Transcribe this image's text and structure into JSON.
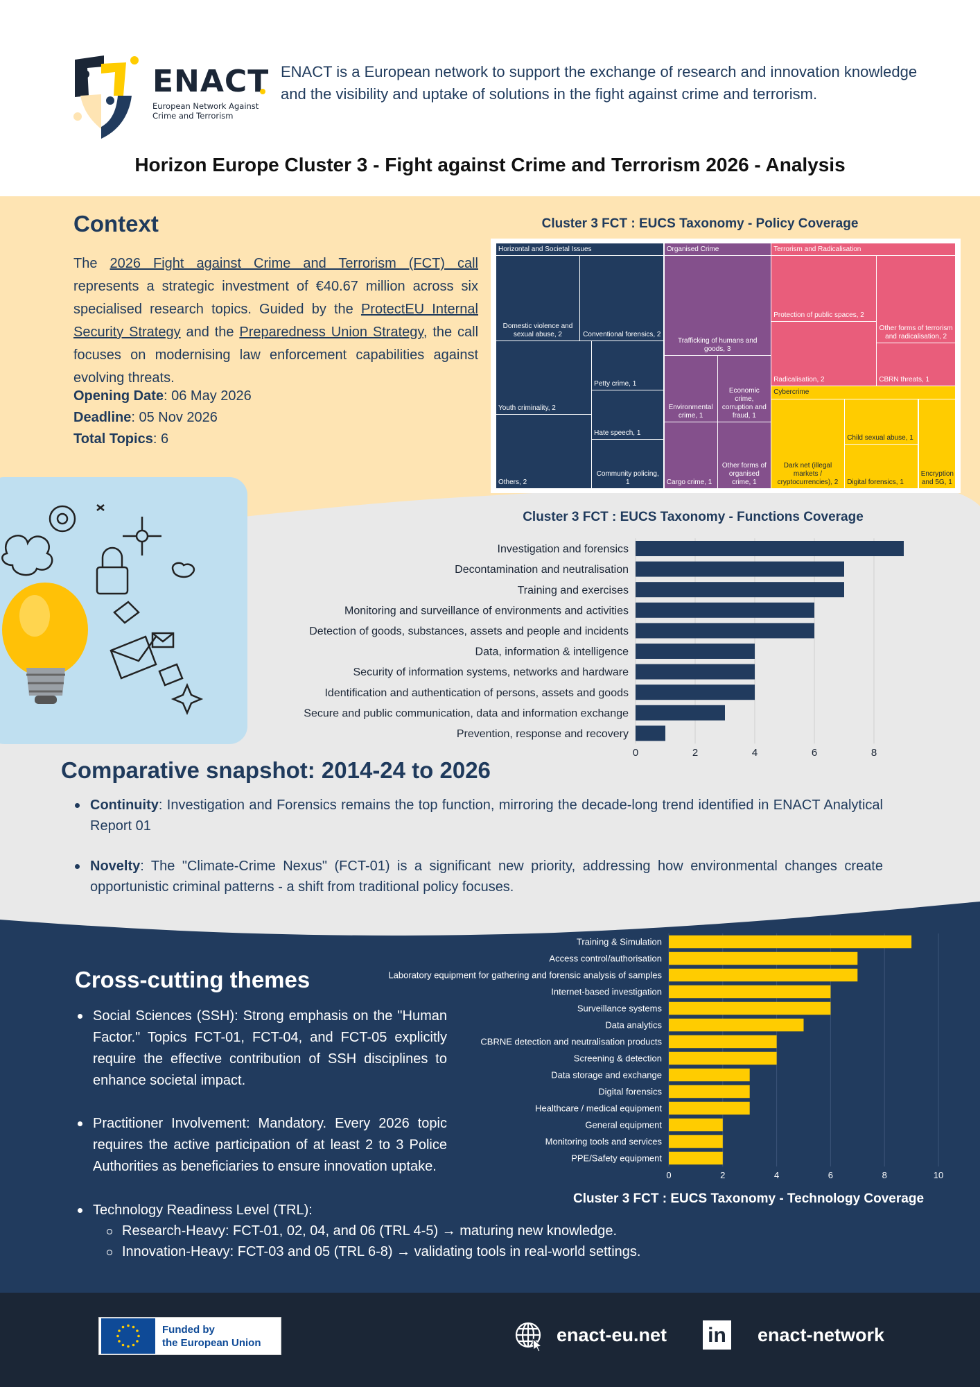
{
  "header": {
    "logo_word": "ENACT",
    "logo_sub_1": "European Network Against",
    "logo_sub_2": "Crime and Terrorism",
    "intro": "ENACT is a European network to support the exchange of research and innovation knowledge and the visibility and uptake of solutions in the fight against crime and terrorism.",
    "title": "Horizon Europe Cluster 3 - Fight against Crime and Terrorism 2026 - Analysis"
  },
  "context": {
    "heading": "Context",
    "p1": "The ",
    "link1": "2026 Fight against Crime and Terrorism (FCT) call",
    "p2": " represents a strategic investment of €40.67 million across six specialised research topics. Guided by the ",
    "link2": "ProtectEU Internal Security Strategy",
    "p3": " and the ",
    "link3": "Preparedness Union Strategy",
    "p4": ", the call focuses on modernising law enforcement capabilities against evolving threats.",
    "opening_label": "Opening Date",
    "opening_value": ": 06 May 2026",
    "deadline_label": "Deadline",
    "deadline_value": ": 05 Nov 2026",
    "topics_label": "Total Topics",
    "topics_value": ": 6"
  },
  "colors": {
    "navy": "#213b5e",
    "purple": "#84508c",
    "pink": "#e95d7b",
    "yellow": "#ffcc00",
    "beige": "#fee4b3",
    "grey": "#e9e9e9",
    "footer": "#1b2636"
  },
  "comparative": {
    "heading": "Comparative snapshot: 2014-24 to 2026",
    "items": [
      {
        "label": "Continuity",
        "text": ": Investigation and Forensics remains the top function, mirroring the decade-long trend identified in ENACT Analytical Report 01"
      },
      {
        "label": "Novelty",
        "text": ": The \"Climate-Crime Nexus\" (FCT-01) is a significant new priority, addressing how environmental changes create opportunistic criminal patterns - a shift from traditional policy focuses."
      }
    ]
  },
  "cross": {
    "heading": "Cross-cutting themes",
    "items": [
      "Social Sciences (SSH): Strong emphasis on the \"Human Factor.\" Topics FCT-01, FCT-04, and FCT-05 explicitly require the effective contribution of SSH disciplines to enhance societal impact.",
      "Practitioner Involvement: Mandatory. Every 2026 topic requires the active participation of at least 2 to 3 Police Authorities as beneficiaries to ensure innovation uptake."
    ],
    "trl": "Technology Readiness Level (TRL):",
    "trl_sub": [
      "Research-Heavy: FCT-01, 02, 04, and 06 (TRL 4-5) → maturing new knowledge.",
      "Innovation-Heavy: FCT-03 and 05 (TRL 6-8)  →  validating tools in real-world settings."
    ]
  },
  "footer": {
    "eu_line1": "Funded by",
    "eu_line2": "the European Union",
    "website": "enact-eu.net",
    "linkedin": "enact-network",
    "linkedin_glyph": "in"
  },
  "chart_data": [
    {
      "type": "treemap",
      "title": "Cluster 3 FCT : EUCS Taxonomy - Policy Coverage",
      "groups": [
        {
          "name": "Horizontal and Societal Issues",
          "color": "#213b5e",
          "items": [
            {
              "label": "Domestic violence and sexual abuse, 2",
              "value": 2
            },
            {
              "label": "Conventional forensics, 2",
              "value": 2
            },
            {
              "label": "Youth criminality, 2",
              "value": 2
            },
            {
              "label": "Others, 2",
              "value": 2
            },
            {
              "label": "Petty crime, 1",
              "value": 1
            },
            {
              "label": "Hate speech, 1",
              "value": 1
            },
            {
              "label": "Community policing, 1",
              "value": 1
            }
          ]
        },
        {
          "name": "Organised Crime",
          "color": "#84508c",
          "items": [
            {
              "label": "Trafficking of humans and goods, 3",
              "value": 3
            },
            {
              "label": "Environmental crime, 1",
              "value": 1
            },
            {
              "label": "Economic crime, corruption and fraud, 1",
              "value": 1
            },
            {
              "label": "Cargo crime, 1",
              "value": 1
            },
            {
              "label": "Other forms of organised crime, 1",
              "value": 1
            }
          ]
        },
        {
          "name": "Terrorism and Radicalisation",
          "color": "#e95d7b",
          "items": [
            {
              "label": "Protection of public spaces, 2",
              "value": 2
            },
            {
              "label": "Radicalisation, 2",
              "value": 2
            },
            {
              "label": "Other forms of terrorism and radicalisation, 2",
              "value": 2
            },
            {
              "label": "CBRN threats, 1",
              "value": 1
            }
          ]
        },
        {
          "name": "Cybercrime",
          "color": "#ffcc00",
          "items": [
            {
              "label": "Dark net (illegal markets / cryptocurrencies), 2",
              "value": 2
            },
            {
              "label": "Child sexual abuse, 1",
              "value": 1
            },
            {
              "label": "Digital forensics, 1",
              "value": 1
            },
            {
              "label": "Encryption and 5G, 1",
              "value": 1
            }
          ]
        }
      ]
    },
    {
      "type": "bar",
      "orientation": "horizontal",
      "title": "Cluster 3 FCT : EUCS Taxonomy - Functions Coverage",
      "categories": [
        "Investigation and forensics",
        "Decontamination and neutralisation",
        "Training and exercises",
        "Monitoring and surveillance of environments and activities",
        "Detection of goods, substances, assets and people and incidents",
        "Data, information & intelligence",
        "Security of information systems, networks and hardware",
        "Identification and authentication of persons, assets and goods",
        "Secure and public communication, data and information exchange",
        "Prevention, response and recovery"
      ],
      "values": [
        9,
        7,
        7,
        6,
        6,
        4,
        4,
        4,
        3,
        1
      ],
      "xlim": [
        0,
        9
      ],
      "xticks": [
        0,
        2,
        4,
        6,
        8
      ],
      "color": "#213b5e",
      "grid": true
    },
    {
      "type": "bar",
      "orientation": "horizontal",
      "title": "Cluster 3 FCT : EUCS Taxonomy - Technology Coverage",
      "categories": [
        "Training & Simulation",
        "Access control/authorisation",
        "Laboratory equipment for gathering and forensic analysis of samples",
        "Internet-based investigation",
        "Surveillance systems",
        "Data analytics",
        "CBRNE detection and neutralisation products",
        "Screening & detection",
        "Data storage and exchange",
        "Digital forensics",
        "Healthcare / medical equipment",
        "General equipment",
        "Monitoring tools and services",
        "PPE/Safety equipment"
      ],
      "values": [
        9,
        7,
        7,
        6,
        6,
        5,
        4,
        4,
        3,
        3,
        3,
        2,
        2,
        2
      ],
      "xlim": [
        0,
        10
      ],
      "xticks": [
        0,
        2,
        4,
        6,
        8,
        10
      ],
      "color": "#ffcc00",
      "grid": true
    }
  ]
}
